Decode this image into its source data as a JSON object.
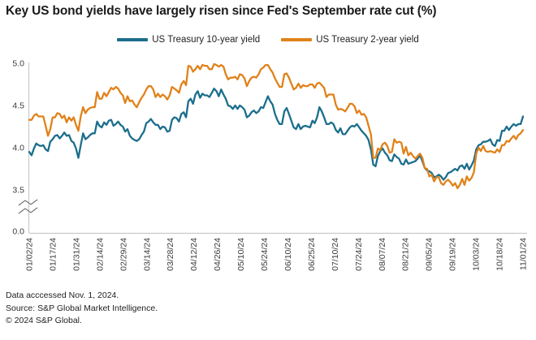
{
  "footer": {
    "accessed": "Data acccessed Nov. 1, 2024.",
    "source": "Source: S&P Global Market Intelligence.",
    "copyright": "© 2024 S&P Global."
  },
  "chart_data": {
    "type": "line",
    "title": "Key US bond yields have largely risen since Fed's September rate cut (%)",
    "xlabel": "",
    "ylabel": "",
    "grid": false,
    "legend_position": "top-center",
    "ylim": [
      3.5,
      5.0
    ],
    "y_tick_labels": [
      "5.0",
      "4.5",
      "4.0",
      "3.5"
    ],
    "y_axis_break": true,
    "y_axis_break_label": "0.0",
    "x_unit": "daily trading dates, MM/DD/YY",
    "x_tick_labels": [
      "01/02/24",
      "01/17/24",
      "01/31/24",
      "02/14/24",
      "02/29/24",
      "03/14/24",
      "03/28/24",
      "04/12/24",
      "04/26/24",
      "05/10/24",
      "05/24/24",
      "06/10/24",
      "06/25/24",
      "07/10/24",
      "07/24/24",
      "08/07/24",
      "08/21/24",
      "09/05/24",
      "09/19/24",
      "10/03/24",
      "10/18/24",
      "11/01/24"
    ],
    "series": [
      {
        "name": "US Treasury 10-year yield",
        "color": "#1b6e8c",
        "values": [
          3.95,
          3.91,
          3.99,
          4.05,
          4.03,
          4.02,
          4.03,
          3.98,
          3.96,
          4.07,
          4.1,
          4.14,
          4.15,
          4.11,
          4.14,
          4.18,
          4.14,
          4.15,
          4.08,
          4.06,
          3.99,
          3.88,
          4.03,
          4.17,
          4.1,
          4.12,
          4.15,
          4.17,
          4.17,
          4.31,
          4.26,
          4.24,
          4.3,
          4.27,
          4.32,
          4.33,
          4.26,
          4.28,
          4.31,
          4.27,
          4.25,
          4.19,
          4.22,
          4.14,
          4.11,
          4.09,
          4.08,
          4.1,
          4.15,
          4.19,
          4.29,
          4.31,
          4.34,
          4.3,
          4.27,
          4.27,
          4.22,
          4.25,
          4.24,
          4.19,
          4.2,
          4.33,
          4.36,
          4.35,
          4.31,
          4.4,
          4.42,
          4.36,
          4.55,
          4.58,
          4.52,
          4.63,
          4.67,
          4.59,
          4.64,
          4.62,
          4.62,
          4.6,
          4.65,
          4.7,
          4.67,
          4.61,
          4.69,
          4.63,
          4.58,
          4.5,
          4.49,
          4.46,
          4.5,
          4.46,
          4.5,
          4.48,
          4.45,
          4.36,
          4.38,
          4.42,
          4.44,
          4.41,
          4.43,
          4.48,
          4.47,
          4.54,
          4.61,
          4.55,
          4.51,
          4.4,
          4.33,
          4.28,
          4.28,
          4.43,
          4.47,
          4.4,
          4.32,
          4.24,
          4.22,
          4.28,
          4.22,
          4.25,
          4.26,
          4.25,
          4.24,
          4.32,
          4.29,
          4.36,
          4.48,
          4.43,
          4.36,
          4.28,
          4.28,
          4.3,
          4.28,
          4.21,
          4.18,
          4.23,
          4.16,
          4.16,
          4.2,
          4.24,
          4.26,
          4.25,
          4.28,
          4.24,
          4.2,
          4.17,
          4.14,
          4.09,
          3.98,
          3.8,
          3.78,
          3.9,
          3.96,
          3.99,
          3.94,
          3.91,
          3.85,
          3.84,
          3.92,
          3.89,
          3.87,
          3.81,
          3.8,
          3.86,
          3.81,
          3.82,
          3.83,
          3.84,
          3.87,
          3.91,
          3.84,
          3.76,
          3.73,
          3.72,
          3.7,
          3.65,
          3.66,
          3.68,
          3.66,
          3.62,
          3.65,
          3.7,
          3.71,
          3.73,
          3.75,
          3.73,
          3.78,
          3.79,
          3.75,
          3.81,
          3.74,
          3.79,
          3.85,
          3.98,
          4.03,
          4.04,
          4.07,
          4.07,
          4.08,
          4.1,
          4.04,
          4.02,
          4.09,
          4.08,
          4.2,
          4.2,
          4.25,
          4.21,
          4.25,
          4.28,
          4.26,
          4.28,
          4.28,
          4.37
        ]
      },
      {
        "name": "US Treasury 2-year yield",
        "color": "#e08219",
        "values": [
          4.33,
          4.33,
          4.38,
          4.4,
          4.37,
          4.37,
          4.37,
          4.26,
          4.14,
          4.22,
          4.36,
          4.36,
          4.41,
          4.4,
          4.35,
          4.38,
          4.3,
          4.36,
          4.32,
          4.36,
          4.27,
          4.2,
          4.37,
          4.48,
          4.41,
          4.45,
          4.47,
          4.48,
          4.48,
          4.66,
          4.58,
          4.58,
          4.65,
          4.61,
          4.66,
          4.71,
          4.69,
          4.72,
          4.7,
          4.65,
          4.62,
          4.53,
          4.61,
          4.55,
          4.56,
          4.51,
          4.48,
          4.54,
          4.59,
          4.63,
          4.69,
          4.73,
          4.73,
          4.69,
          4.6,
          4.64,
          4.6,
          4.63,
          4.61,
          4.57,
          4.62,
          4.72,
          4.7,
          4.68,
          4.65,
          4.75,
          4.79,
          4.74,
          4.97,
          4.96,
          4.9,
          4.93,
          4.97,
          4.93,
          4.98,
          4.97,
          4.97,
          4.93,
          4.93,
          4.99,
          4.98,
          4.96,
          4.98,
          4.96,
          4.87,
          4.81,
          4.83,
          4.83,
          4.84,
          4.81,
          4.87,
          4.86,
          4.82,
          4.73,
          4.79,
          4.83,
          4.84,
          4.83,
          4.87,
          4.93,
          4.95,
          4.98,
          4.98,
          4.93,
          4.89,
          4.82,
          4.77,
          4.72,
          4.72,
          4.87,
          4.88,
          4.83,
          4.76,
          4.69,
          4.71,
          4.76,
          4.71,
          4.74,
          4.73,
          4.73,
          4.75,
          4.75,
          4.71,
          4.76,
          4.77,
          4.74,
          4.71,
          4.6,
          4.63,
          4.63,
          4.63,
          4.51,
          4.45,
          4.46,
          4.45,
          4.43,
          4.47,
          4.52,
          4.52,
          4.49,
          4.41,
          4.44,
          4.39,
          4.4,
          4.36,
          4.26,
          4.16,
          3.88,
          3.88,
          3.99,
          3.97,
          4.04,
          4.06,
          4.02,
          3.94,
          3.95,
          4.1,
          4.06,
          4.07,
          4.06,
          3.93,
          4.01,
          3.91,
          3.94,
          3.9,
          3.87,
          3.9,
          3.93,
          3.88,
          3.76,
          3.75,
          3.66,
          3.68,
          3.6,
          3.65,
          3.65,
          3.58,
          3.56,
          3.6,
          3.62,
          3.59,
          3.55,
          3.58,
          3.52,
          3.56,
          3.63,
          3.56,
          3.66,
          3.61,
          3.64,
          3.71,
          3.93,
          4.0,
          3.96,
          4.02,
          3.96,
          3.95,
          3.96,
          3.95,
          3.94,
          3.98,
          3.95,
          4.03,
          4.03,
          4.08,
          4.07,
          4.11,
          4.14,
          4.1,
          4.15,
          4.17,
          4.21
        ]
      }
    ]
  }
}
